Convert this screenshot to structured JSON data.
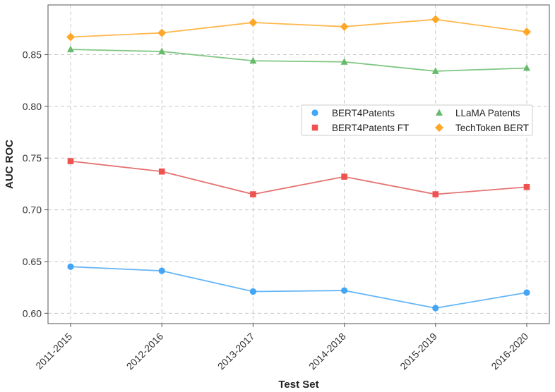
{
  "chart_data": {
    "type": "line",
    "title": "",
    "xlabel": "Test Set",
    "ylabel": "AUC ROC",
    "categories": [
      "2011-2015",
      "2012-2016",
      "2013-2017",
      "2014-2018",
      "2015-2019",
      "2016-2020"
    ],
    "ylim": [
      0.59,
      0.898
    ],
    "yticks": [
      "0.60",
      "0.65",
      "0.70",
      "0.75",
      "0.80",
      "0.85"
    ],
    "grid": true,
    "legend_position": "center-right",
    "series": [
      {
        "name": "BERT4Patents",
        "marker": "circle",
        "color": "#42A5F5",
        "line_color": "#64B5F6",
        "values": [
          0.645,
          0.641,
          0.621,
          0.622,
          0.605,
          0.62
        ]
      },
      {
        "name": "BERT4Patents FT",
        "marker": "square",
        "color": "#EF5350",
        "line_color": "#E57373",
        "values": [
          0.747,
          0.737,
          0.715,
          0.732,
          0.715,
          0.722
        ]
      },
      {
        "name": "LLaMA Patents",
        "marker": "triangle",
        "color": "#66BB6A",
        "line_color": "#81C784",
        "values": [
          0.855,
          0.853,
          0.844,
          0.843,
          0.834,
          0.837
        ]
      },
      {
        "name": "TechToken BERT",
        "marker": "diamond",
        "color": "#FFA726",
        "line_color": "#FFB74D",
        "values": [
          0.867,
          0.871,
          0.881,
          0.877,
          0.884,
          0.872
        ]
      }
    ]
  }
}
